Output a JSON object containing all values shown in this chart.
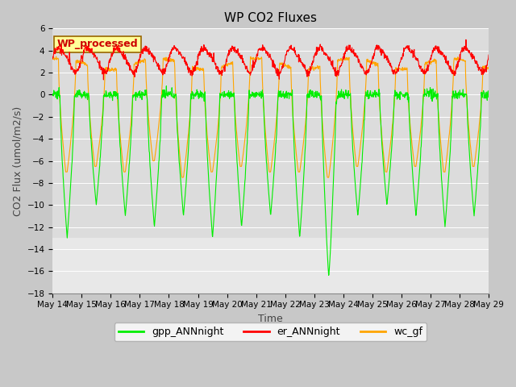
{
  "title": "WP CO2 Fluxes",
  "xlabel": "Time",
  "ylabel_str": "CO2 Flux (umol/m2/s)",
  "ylim": [
    -18,
    6
  ],
  "yticks": [
    -18,
    -16,
    -14,
    -12,
    -10,
    -8,
    -6,
    -4,
    -2,
    0,
    2,
    4,
    6
  ],
  "start_day": 14,
  "end_day": 29,
  "n_points": 1500,
  "figure_bg": "#c8c8c8",
  "plot_bg_upper": "#dcdcdc",
  "plot_bg_lower": "#e8e8e8",
  "gpp_color": "#00ee00",
  "er_color": "#ff0000",
  "wc_color": "#ffa500",
  "legend_label": "WP_processed",
  "legend_bg": "#ffff99",
  "legend_text_color": "#cc0000",
  "series_labels": [
    "gpp_ANNnight",
    "er_ANNnight",
    "wc_gf"
  ],
  "linewidth": 0.8,
  "title_fontsize": 11,
  "axis_fontsize": 9,
  "tick_fontsize": 7.5,
  "legend_fontsize": 9
}
